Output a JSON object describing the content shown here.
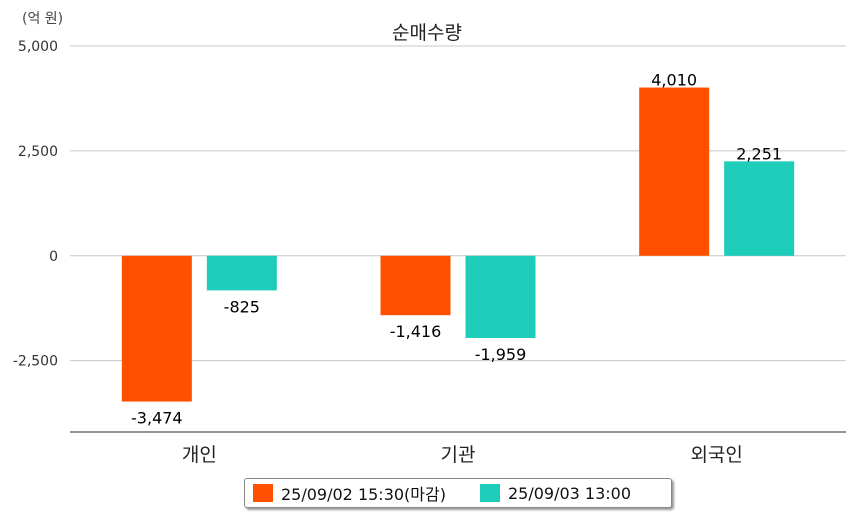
{
  "unit_label": "(억 원)",
  "chart_data": {
    "type": "bar",
    "title": "순매수량",
    "categories": [
      "개인",
      "기관",
      "외국인"
    ],
    "series": [
      {
        "name": "25/09/02 15:30(마감)",
        "color": "#FF5000",
        "values": [
          -3474,
          -1416,
          4010
        ],
        "labels": [
          "-3,474",
          "-1,416",
          "4,010"
        ]
      },
      {
        "name": "25/09/03 13:00",
        "color": "#1ECDB9",
        "values": [
          -825,
          -1959,
          2251
        ],
        "labels": [
          "-825",
          "-1,959",
          "2,251"
        ]
      }
    ],
    "ylim": [
      -4200,
      5000
    ],
    "yticks": [
      5000,
      2500,
      0,
      -2500
    ],
    "ytick_labels": [
      "5,000",
      "2,500",
      "0",
      "-2,500"
    ],
    "grid": true,
    "legend_position": "bottom"
  }
}
